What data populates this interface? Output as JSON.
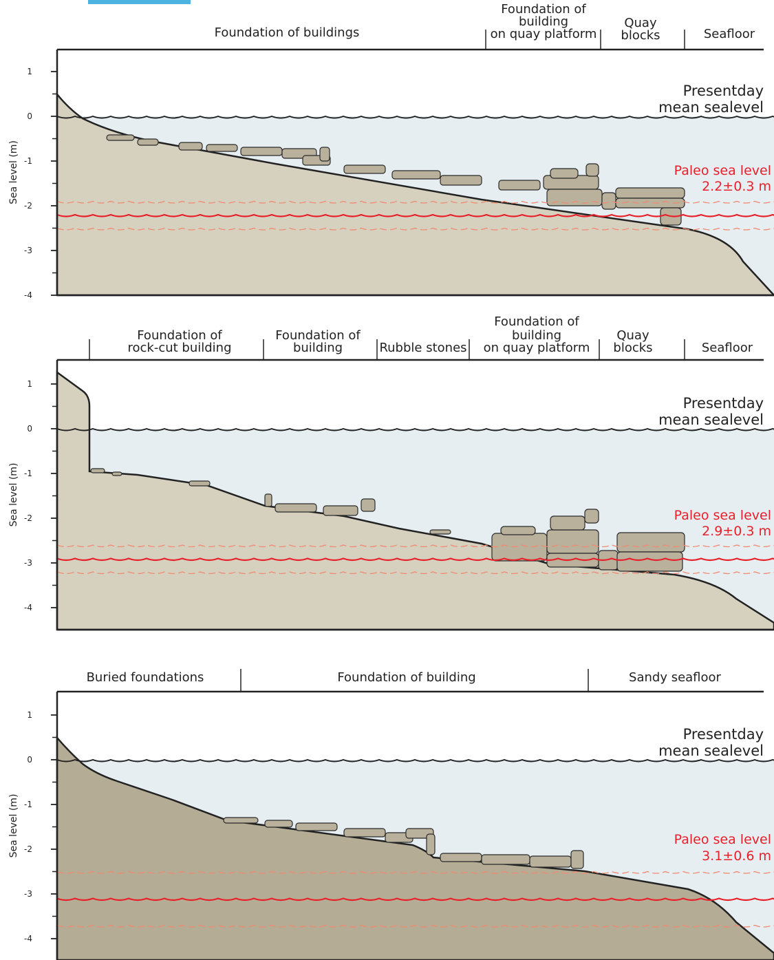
{
  "panels": [
    {
      "y_axis_label": "Sea level (m)",
      "yticks": [
        1,
        0,
        -1,
        -2,
        -3,
        -4
      ],
      "zones": [
        {
          "lines": [
            "Foundation of buildings"
          ]
        },
        {
          "lines": [
            "Foundation of",
            "building",
            "on quay platform"
          ]
        },
        {
          "lines": [
            "Quay",
            "blocks"
          ]
        },
        {
          "lines": [
            "Seafloor"
          ]
        }
      ],
      "present_label": [
        "Presentday",
        "mean sealevel"
      ],
      "paleo": {
        "label": "Paleo sea level",
        "value_text": "2.2±0.3 m",
        "level_m": 2.2,
        "uncertainty_m": 0.3
      }
    },
    {
      "y_axis_label": "Sea level (m)",
      "yticks": [
        1,
        0,
        -1,
        -2,
        -3,
        -4
      ],
      "zones": [
        {
          "lines": [
            "Foundation of",
            "rock-cut building"
          ]
        },
        {
          "lines": [
            "Foundation of",
            "building"
          ]
        },
        {
          "lines": [
            "Rubble stones"
          ]
        },
        {
          "lines": [
            "Foundation of",
            "building",
            "on quay platform"
          ]
        },
        {
          "lines": [
            "Quay",
            "blocks"
          ]
        },
        {
          "lines": [
            "Seafloor"
          ]
        }
      ],
      "present_label": [
        "Presentday",
        "mean sealevel"
      ],
      "paleo": {
        "label": "Paleo sea level",
        "value_text": "2.9±0.3 m",
        "level_m": 2.9,
        "uncertainty_m": 0.3
      }
    },
    {
      "y_axis_label": "Sea level (m)",
      "yticks": [
        1,
        0,
        -1,
        -2,
        -3,
        -4
      ],
      "zones": [
        {
          "lines": [
            "Buried foundations"
          ]
        },
        {
          "lines": [
            "Foundation of building"
          ]
        },
        {
          "lines": [
            "Sandy seafloor"
          ]
        }
      ],
      "present_label": [
        "Presentday",
        "mean sealevel"
      ],
      "paleo": {
        "label": "Paleo sea level",
        "value_text": "3.1±0.6 m",
        "level_m": 3.1,
        "uncertainty_m": 0.6
      }
    }
  ]
}
